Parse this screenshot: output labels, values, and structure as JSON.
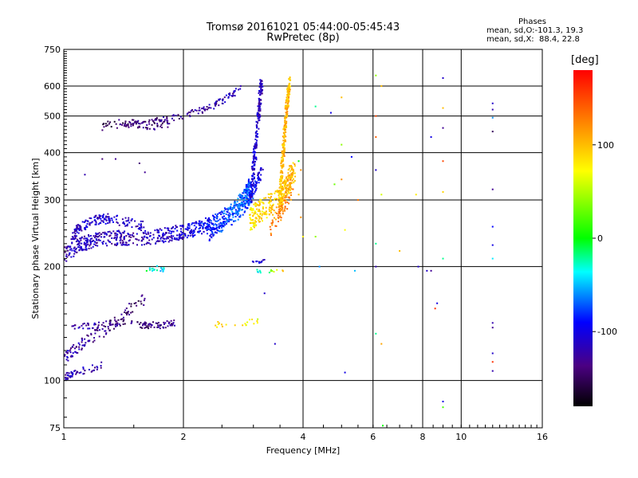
{
  "title": {
    "line1": "Tromsø 20161021 05:44:00-05:45:43",
    "line2": "RwPretec (8p)"
  },
  "phases": {
    "heading": "Phases",
    "o_line": "mean, sd,O:-101.3, 19.3",
    "x_line": "mean, sd,X:  88.4, 22.8"
  },
  "chart_data": {
    "type": "scatter",
    "xlabel": "Frequency [MHz]",
    "ylabel": "Stationary phase Virtual Height [km]",
    "x_scale": "log",
    "y_scale": "log",
    "xlim": [
      1,
      16
    ],
    "ylim": [
      75,
      750
    ],
    "x_ticks": [
      1,
      2,
      4,
      6,
      8,
      10,
      16
    ],
    "x_tick_labels": [
      "1",
      "2",
      "4",
      "6",
      "8",
      "10",
      "16"
    ],
    "y_ticks": [
      75,
      100,
      200,
      300,
      400,
      500,
      600,
      750
    ],
    "y_tick_labels": [
      "75",
      "100",
      "200",
      "300",
      "400",
      "500",
      "600",
      "750"
    ],
    "grid": true,
    "colorbar": {
      "label": "[deg]",
      "range": [
        -180,
        180
      ],
      "ticks": [
        -100,
        0,
        100
      ],
      "tick_labels": [
        "-100",
        "0",
        "100"
      ]
    },
    "traces": [
      {
        "kind": "band",
        "x": [
          1.0,
          1.1,
          1.2,
          1.35,
          1.5,
          1.7,
          1.9,
          2.1,
          2.3,
          2.5,
          2.7,
          2.85,
          2.95
        ],
        "y": [
          215,
          228,
          235,
          238,
          238,
          240,
          245,
          250,
          258,
          268,
          285,
          305,
          330
        ],
        "phase": [
          -120,
          -115,
          -115,
          -120,
          -120,
          -115,
          -110,
          -100,
          -90,
          -80,
          -70,
          -70,
          -80
        ],
        "spread": 0.045,
        "n": 700
      },
      {
        "kind": "band",
        "x": [
          1.05,
          1.1,
          1.2,
          1.3,
          1.45,
          1.6
        ],
        "y": [
          240,
          255,
          265,
          268,
          262,
          255
        ],
        "phase": [
          -120,
          -115,
          -110,
          -110,
          -115,
          -115
        ],
        "spread": 0.03,
        "n": 160
      },
      {
        "kind": "band",
        "x": [
          2.3,
          2.5,
          2.7,
          2.85,
          2.95,
          3.05,
          3.15
        ],
        "y": [
          240,
          255,
          270,
          285,
          300,
          330,
          360
        ],
        "phase": [
          -90,
          -80,
          -70,
          -75,
          -80,
          -95,
          -105
        ],
        "spread": 0.03,
        "n": 160
      },
      {
        "kind": "band",
        "x": [
          2.95,
          3.0,
          3.05,
          3.1,
          3.15
        ],
        "y": [
          300,
          360,
          430,
          520,
          620
        ],
        "phase": [
          -100,
          -105,
          -110,
          -115,
          -120
        ],
        "spread": 0.05,
        "n": 220
      },
      {
        "kind": "band",
        "x": [
          2.95,
          3.1,
          3.3,
          3.5,
          3.6,
          3.7,
          3.8
        ],
        "y": [
          265,
          280,
          290,
          300,
          320,
          340,
          360
        ],
        "phase": [
          80,
          85,
          90,
          95,
          100,
          105,
          100
        ],
        "spread": 0.07,
        "n": 320
      },
      {
        "kind": "band",
        "x": [
          3.5,
          3.55,
          3.6,
          3.65,
          3.7
        ],
        "y": [
          300,
          380,
          460,
          540,
          620
        ],
        "phase": [
          95,
          100,
          110,
          105,
          100
        ],
        "spread": 0.035,
        "n": 260
      },
      {
        "kind": "band",
        "x": [
          3.3,
          3.45,
          3.6,
          3.75
        ],
        "y": [
          250,
          270,
          290,
          320
        ],
        "phase": [
          120,
          125,
          130,
          120
        ],
        "spread": 0.05,
        "n": 60
      },
      {
        "kind": "band",
        "x": [
          1.4,
          1.6,
          1.8,
          2.0,
          2.2,
          2.4,
          2.6,
          2.8
        ],
        "y": [
          470,
          480,
          490,
          500,
          515,
          535,
          560,
          600
        ],
        "phase": [
          -140,
          -140,
          -135,
          -130,
          -125,
          -125,
          -120,
          -115
        ],
        "spread": 0.02,
        "n": 120
      },
      {
        "kind": "band",
        "x": [
          1.25,
          1.35,
          1.45,
          1.55,
          1.65,
          1.85
        ],
        "y": [
          470,
          475,
          480,
          475,
          470,
          475
        ],
        "phase": [
          -150,
          -150,
          -145,
          -145,
          -140,
          -140
        ],
        "spread": 0.025,
        "n": 70
      },
      {
        "kind": "band",
        "x": [
          1.0,
          1.05,
          1.15,
          1.25
        ],
        "y": [
          102,
          104,
          107,
          110
        ],
        "phase": [
          -120,
          -115,
          -120,
          -125
        ],
        "spread": 0.02,
        "n": 60
      },
      {
        "kind": "band",
        "x": [
          1.0,
          1.05,
          1.15,
          1.25,
          1.35
        ],
        "y": [
          112,
          120,
          128,
          135,
          142
        ],
        "phase": [
          -115,
          -120,
          -130,
          -135,
          -140
        ],
        "spread": 0.04,
        "n": 90
      },
      {
        "kind": "band",
        "x": [
          1.05,
          1.2,
          1.4,
          1.6,
          1.75,
          1.9
        ],
        "y": [
          138,
          140,
          142,
          140,
          140,
          142
        ],
        "phase": [
          -120,
          -125,
          -140,
          -140,
          -135,
          -130
        ],
        "spread": 0.02,
        "n": 120
      },
      {
        "kind": "band",
        "x": [
          1.4,
          1.5,
          1.6
        ],
        "y": [
          150,
          158,
          165
        ],
        "phase": [
          -140,
          -145,
          -145
        ],
        "spread": 0.04,
        "n": 30
      },
      {
        "kind": "band",
        "x": [
          1.6,
          1.7,
          1.8
        ],
        "y": [
          195,
          198,
          195
        ],
        "phase": [
          -20,
          -30,
          -50
        ],
        "spread": 0.02,
        "n": 18
      },
      {
        "kind": "band",
        "x": [
          2.4,
          2.6,
          2.8,
          3.0,
          3.1
        ],
        "y": [
          140,
          141,
          142,
          143,
          145
        ],
        "phase": [
          80,
          90,
          85,
          75,
          70
        ],
        "spread": 0.02,
        "n": 20
      },
      {
        "kind": "band",
        "x": [
          3.0,
          3.1,
          3.2
        ],
        "y": [
          205,
          205,
          208
        ],
        "phase": [
          -110,
          -110,
          -115
        ],
        "spread": 0.01,
        "n": 12
      },
      {
        "kind": "band",
        "x": [
          3.0,
          3.2,
          3.5,
          3.7
        ],
        "y": [
          195,
          194,
          195,
          195
        ],
        "phase": [
          -40,
          -30,
          90,
          110
        ],
        "spread": 0.01,
        "n": 14
      }
    ],
    "points": [
      {
        "x": 1.13,
        "y": 350,
        "phase": -120
      },
      {
        "x": 1.25,
        "y": 385,
        "phase": -140
      },
      {
        "x": 1.35,
        "y": 385,
        "phase": -130
      },
      {
        "x": 1.55,
        "y": 375,
        "phase": -140
      },
      {
        "x": 1.6,
        "y": 355,
        "phase": -130
      },
      {
        "x": 3.2,
        "y": 170,
        "phase": -110
      },
      {
        "x": 3.4,
        "y": 125,
        "phase": -110
      },
      {
        "x": 3.9,
        "y": 380,
        "phase": 0
      },
      {
        "x": 3.95,
        "y": 360,
        "phase": 120
      },
      {
        "x": 3.9,
        "y": 310,
        "phase": 100
      },
      {
        "x": 3.95,
        "y": 270,
        "phase": 120
      },
      {
        "x": 4.0,
        "y": 240,
        "phase": 80
      },
      {
        "x": 4.3,
        "y": 530,
        "phase": -20
      },
      {
        "x": 4.3,
        "y": 240,
        "phase": 40
      },
      {
        "x": 4.4,
        "y": 200,
        "phase": -60
      },
      {
        "x": 4.7,
        "y": 510,
        "phase": -100
      },
      {
        "x": 4.8,
        "y": 330,
        "phase": 30
      },
      {
        "x": 5.0,
        "y": 560,
        "phase": 100
      },
      {
        "x": 5.0,
        "y": 420,
        "phase": 40
      },
      {
        "x": 5.0,
        "y": 340,
        "phase": 120
      },
      {
        "x": 5.1,
        "y": 250,
        "phase": 70
      },
      {
        "x": 5.1,
        "y": 105,
        "phase": -100
      },
      {
        "x": 5.3,
        "y": 390,
        "phase": -90
      },
      {
        "x": 5.4,
        "y": 195,
        "phase": -50
      },
      {
        "x": 5.5,
        "y": 300,
        "phase": 130
      },
      {
        "x": 6.1,
        "y": 640,
        "phase": 40
      },
      {
        "x": 6.1,
        "y": 500,
        "phase": 150
      },
      {
        "x": 6.1,
        "y": 440,
        "phase": 140
      },
      {
        "x": 6.1,
        "y": 360,
        "phase": -110
      },
      {
        "x": 6.1,
        "y": 230,
        "phase": -20
      },
      {
        "x": 6.1,
        "y": 200,
        "phase": -120
      },
      {
        "x": 6.1,
        "y": 133,
        "phase": -20
      },
      {
        "x": 6.3,
        "y": 600,
        "phase": 100
      },
      {
        "x": 6.3,
        "y": 310,
        "phase": 60
      },
      {
        "x": 6.3,
        "y": 125,
        "phase": 110
      },
      {
        "x": 6.35,
        "y": 76,
        "phase": 0
      },
      {
        "x": 7.0,
        "y": 220,
        "phase": 100
      },
      {
        "x": 7.7,
        "y": 310,
        "phase": 80
      },
      {
        "x": 7.8,
        "y": 200,
        "phase": -110
      },
      {
        "x": 8.2,
        "y": 195,
        "phase": -110
      },
      {
        "x": 8.4,
        "y": 440,
        "phase": -100
      },
      {
        "x": 8.4,
        "y": 195,
        "phase": -130
      },
      {
        "x": 8.6,
        "y": 155,
        "phase": 160
      },
      {
        "x": 8.7,
        "y": 160,
        "phase": -100
      },
      {
        "x": 9.0,
        "y": 630,
        "phase": -110
      },
      {
        "x": 9.0,
        "y": 525,
        "phase": 100
      },
      {
        "x": 9.0,
        "y": 465,
        "phase": -130
      },
      {
        "x": 9.0,
        "y": 380,
        "phase": 150
      },
      {
        "x": 9.0,
        "y": 315,
        "phase": 90
      },
      {
        "x": 9.0,
        "y": 210,
        "phase": -20
      },
      {
        "x": 9.0,
        "y": 88,
        "phase": -100
      },
      {
        "x": 9.0,
        "y": 85,
        "phase": 20
      },
      {
        "x": 12.0,
        "y": 540,
        "phase": -110
      },
      {
        "x": 12.0,
        "y": 520,
        "phase": -120
      },
      {
        "x": 12.0,
        "y": 495,
        "phase": -60
      },
      {
        "x": 12.0,
        "y": 455,
        "phase": -150
      },
      {
        "x": 12.0,
        "y": 320,
        "phase": -130
      },
      {
        "x": 12.0,
        "y": 255,
        "phase": -90
      },
      {
        "x": 12.0,
        "y": 228,
        "phase": -100
      },
      {
        "x": 12.0,
        "y": 210,
        "phase": -40
      },
      {
        "x": 12.0,
        "y": 142,
        "phase": -120
      },
      {
        "x": 12.0,
        "y": 138,
        "phase": -130
      },
      {
        "x": 12.0,
        "y": 118,
        "phase": -110
      },
      {
        "x": 12.0,
        "y": 112,
        "phase": 160
      },
      {
        "x": 12.0,
        "y": 106,
        "phase": -120
      }
    ]
  }
}
